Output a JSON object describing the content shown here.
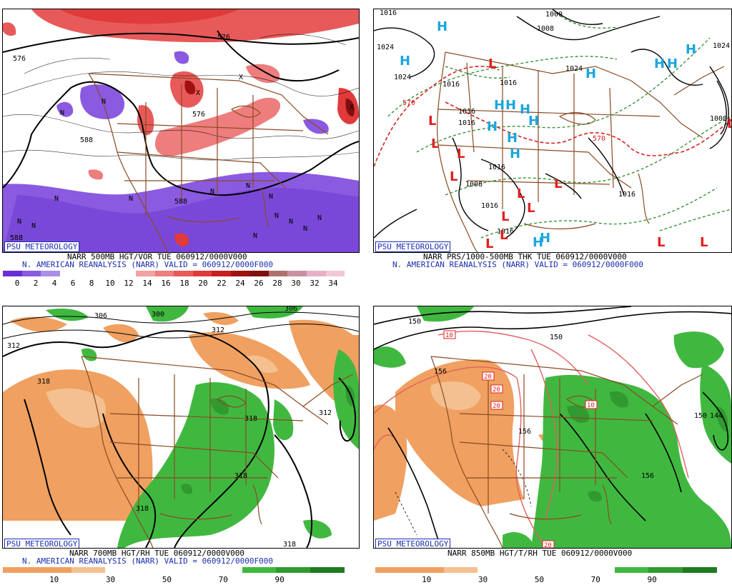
{
  "panels": {
    "tl": {
      "psu": "PSU METEOROLOGY",
      "caption1": "NARR 500MB HGT/VOR TUE 060912/0000V000",
      "caption2": "N. AMERICAN REANALYSIS (NARR) VALID = 060912/0000F000",
      "contours": [
        "576",
        "576",
        "576",
        "588",
        "588",
        "588"
      ],
      "colorbar": {
        "colors": [
          "#6a2cd8",
          "#8a5ae0",
          "#a98fe8",
          "#ffffff",
          "#ffffff",
          "#ffffff",
          "#ffffff",
          "#f2a0a0",
          "#ee7d7d",
          "#e85a5a",
          "#e03a3a",
          "#c81e1e",
          "#a01010",
          "#801010",
          "#b07070",
          "#c890a0",
          "#e8b0c8",
          "#f0c8d8"
        ],
        "ticks": [
          "0",
          "2",
          "4",
          "6",
          "8",
          "10",
          "12",
          "14",
          "16",
          "18",
          "20",
          "22",
          "24",
          "26",
          "28",
          "30",
          "32",
          "34"
        ]
      }
    },
    "tr": {
      "psu": "PSU METEOROLOGY",
      "caption1": "NARR PRS/1000-500MB THK TUE 060912/0000V000",
      "caption2": "N. AMERICAN REANALYSIS (NARR) VALID = 060912/0000F000",
      "labels": [
        "1016",
        "1024",
        "1024",
        "1000",
        "1008",
        "1024",
        "1016",
        "1016",
        "1016",
        "1016",
        "1008",
        "1016",
        "1016",
        "1008",
        "1024",
        "570",
        "570"
      ],
      "highs": 15,
      "lows": 14
    },
    "bl": {
      "psu": "PSU METEOROLOGY",
      "caption1": "NARR 700MB HGT/RH TUE 060912/0000V000",
      "caption2": "N. AMERICAN REANALYSIS (NARR) VALID = 060912/0000F000",
      "contours": [
        "306",
        "300",
        "312",
        "312",
        "318",
        "318",
        "318",
        "318",
        "312",
        "306",
        "318"
      ],
      "colorbar": {
        "colors": [
          "#f0a060",
          "#f0a060",
          "#f4c090",
          "#ffffff",
          "#ffffff",
          "#ffffff",
          "#ffffff",
          "#40b840",
          "#309a30",
          "#207a20"
        ],
        "ticks": [
          "10",
          "30",
          "50",
          "70",
          "90"
        ]
      }
    },
    "br": {
      "psu": "PSU METEOROLOGY",
      "caption1": "NARR 850MB HGT/T/RH TUE 060912/0000V000",
      "contours": [
        "150",
        "150",
        "156",
        "156",
        "156",
        "150",
        "144"
      ],
      "temps": [
        "10",
        "20",
        "20",
        "20",
        "10",
        "20"
      ],
      "colorbar": {
        "colors": [
          "#f0a060",
          "#f0a060",
          "#f4c090",
          "#ffffff",
          "#ffffff",
          "#ffffff",
          "#ffffff",
          "#40b840",
          "#309a30",
          "#207a20"
        ],
        "ticks": [
          "10",
          "30",
          "50",
          "70",
          "90"
        ]
      }
    }
  }
}
